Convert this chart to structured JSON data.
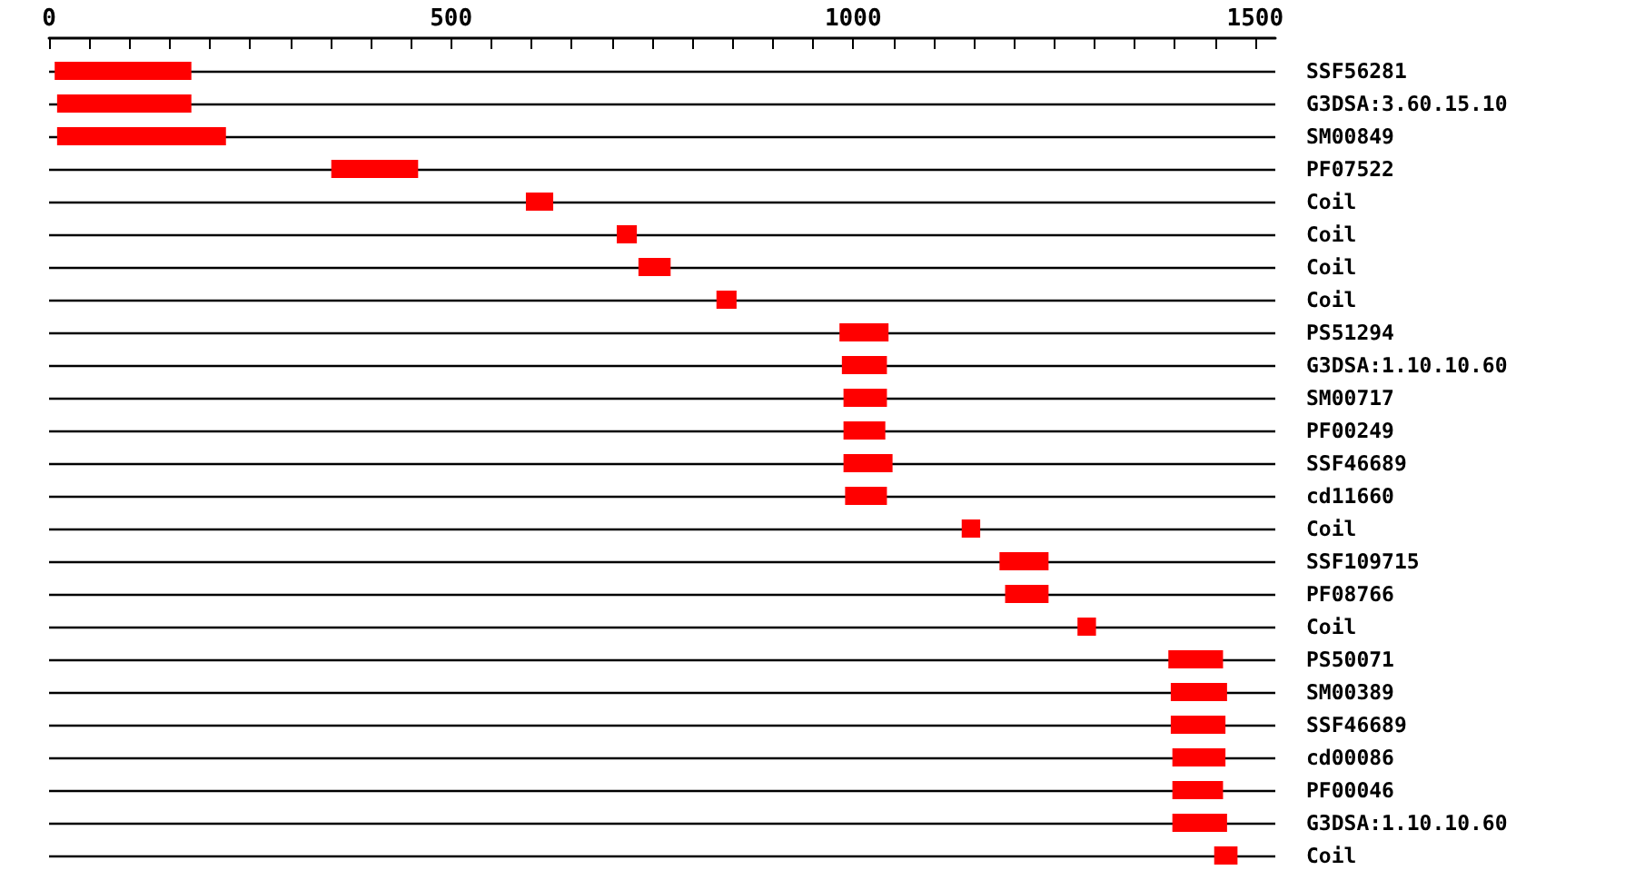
{
  "chart_data": {
    "type": "bar",
    "orientation": "horizontal",
    "grid": "y",
    "categories": [
      "SSF56281",
      "G3DSA:3.60.15.10",
      "SM00849",
      "PF07522",
      "Coil",
      "Coil",
      "Coil",
      "Coil",
      "PS51294",
      "G3DSA:1.10.10.60",
      "SM00717",
      "PF00249",
      "SSF46689",
      "cd11660",
      "Coil",
      "SSF109715",
      "PF08766",
      "Coil",
      "PS50071",
      "SM00389",
      "SSF46689",
      "cd00086",
      "PF00046",
      "G3DSA:1.10.10.60",
      "Coil"
    ],
    "series": [
      {
        "color": "#ff0000",
        "base": [
          7,
          10,
          10,
          351,
          593,
          706,
          733,
          830,
          983,
          986,
          988,
          988,
          988,
          990,
          1135,
          1182,
          1189,
          1279,
          1392,
          1395,
          1395,
          1397,
          1397,
          1397,
          1449
        ],
        "values": [
          170,
          167,
          210,
          108,
          34,
          25,
          40,
          25,
          61,
          56,
          54,
          52,
          61,
          52,
          23,
          61,
          54,
          23,
          68,
          70,
          68,
          66,
          63,
          68,
          29
        ]
      }
    ],
    "xlim": [
      0,
      1525
    ],
    "xticks": [
      0,
      {
        "value": 50,
        "label": null
      },
      {
        "value": 100,
        "label": null
      },
      {
        "value": 150,
        "label": null
      },
      {
        "value": 200,
        "label": null
      },
      {
        "value": 250,
        "label": null
      },
      {
        "value": 300,
        "label": null
      },
      {
        "value": 350,
        "label": null
      },
      {
        "value": 400,
        "label": null
      },
      {
        "value": 450,
        "label": null
      },
      500,
      {
        "value": 550,
        "label": null
      },
      {
        "value": 600,
        "label": null
      },
      {
        "value": 650,
        "label": null
      },
      {
        "value": 700,
        "label": null
      },
      {
        "value": 750,
        "label": null
      },
      {
        "value": 800,
        "label": null
      },
      {
        "value": 850,
        "label": null
      },
      {
        "value": 900,
        "label": null
      },
      {
        "value": 950,
        "label": null
      },
      1000,
      {
        "value": 1050,
        "label": null
      },
      {
        "value": 1100,
        "label": null
      },
      {
        "value": 1150,
        "label": null
      },
      {
        "value": 1200,
        "label": null
      },
      {
        "value": 1250,
        "label": null
      },
      {
        "value": 1300,
        "label": null
      },
      {
        "value": 1350,
        "label": null
      },
      {
        "value": 1400,
        "label": null
      },
      {
        "value": 1450,
        "label": null
      },
      1500
    ]
  }
}
